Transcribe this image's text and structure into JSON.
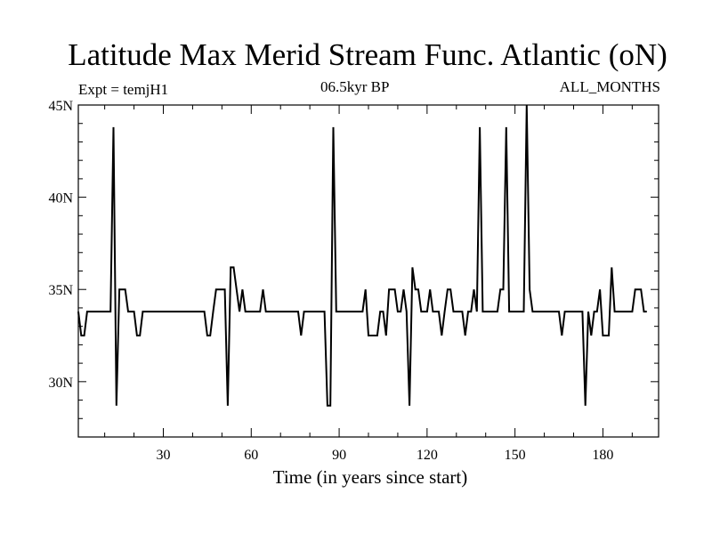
{
  "chart_data": {
    "type": "line",
    "title": "Latitude Max Merid Stream Func. Atlantic (oN)",
    "subtitle_left": "Expt = temjH1",
    "subtitle_center": "06.5kyr BP",
    "subtitle_right": "ALL_MONTHS",
    "xlabel": "Time (in years since start)",
    "ylabel": "",
    "xlim": [
      1,
      199
    ],
    "ylim": [
      27,
      45
    ],
    "x_ticks": [
      30,
      60,
      90,
      120,
      150,
      180
    ],
    "x_tick_labels": [
      "30",
      "60",
      "90",
      "120",
      "150",
      "180"
    ],
    "y_ticks": [
      30,
      35,
      40,
      45
    ],
    "y_tick_labels": [
      "30N",
      "35N",
      "40N",
      "45N"
    ],
    "grid": false,
    "series": [
      {
        "values": [
          [
            1,
            33.8
          ],
          [
            2,
            32.5
          ],
          [
            3,
            32.5
          ],
          [
            4,
            33.8
          ],
          [
            5,
            33.8
          ],
          [
            6,
            33.8
          ],
          [
            7,
            33.8
          ],
          [
            8,
            33.8
          ],
          [
            9,
            33.8
          ],
          [
            10,
            33.8
          ],
          [
            11,
            33.8
          ],
          [
            12,
            33.8
          ],
          [
            13,
            43.8
          ],
          [
            14,
            28.7
          ],
          [
            15,
            35.0
          ],
          [
            16,
            35.0
          ],
          [
            17,
            35.0
          ],
          [
            18,
            33.8
          ],
          [
            19,
            33.8
          ],
          [
            20,
            33.8
          ],
          [
            21,
            32.5
          ],
          [
            22,
            32.5
          ],
          [
            23,
            33.8
          ],
          [
            24,
            33.8
          ],
          [
            30,
            33.8
          ],
          [
            36,
            33.8
          ],
          [
            40,
            33.8
          ],
          [
            44,
            33.8
          ],
          [
            45,
            32.5
          ],
          [
            46,
            32.5
          ],
          [
            47,
            33.8
          ],
          [
            48,
            35.0
          ],
          [
            49,
            35.0
          ],
          [
            50,
            35.0
          ],
          [
            51,
            35.0
          ],
          [
            52,
            28.7
          ],
          [
            53,
            36.2
          ],
          [
            54,
            36.2
          ],
          [
            55,
            35.0
          ],
          [
            56,
            33.8
          ],
          [
            57,
            35.0
          ],
          [
            58,
            33.8
          ],
          [
            59,
            33.8
          ],
          [
            60,
            33.8
          ],
          [
            61,
            33.8
          ],
          [
            62,
            33.8
          ],
          [
            63,
            33.8
          ],
          [
            64,
            35.0
          ],
          [
            65,
            33.8
          ],
          [
            66,
            33.8
          ],
          [
            70,
            33.8
          ],
          [
            74,
            33.8
          ],
          [
            76,
            33.8
          ],
          [
            77,
            32.5
          ],
          [
            78,
            33.8
          ],
          [
            80,
            33.8
          ],
          [
            83,
            33.8
          ],
          [
            85,
            33.8
          ],
          [
            86,
            28.7
          ],
          [
            87,
            28.7
          ],
          [
            88,
            43.8
          ],
          [
            89,
            33.8
          ],
          [
            90,
            33.8
          ],
          [
            95,
            33.8
          ],
          [
            98,
            33.8
          ],
          [
            99,
            35.0
          ],
          [
            100,
            32.5
          ],
          [
            101,
            32.5
          ],
          [
            102,
            32.5
          ],
          [
            103,
            32.5
          ],
          [
            104,
            33.8
          ],
          [
            105,
            33.8
          ],
          [
            106,
            32.5
          ],
          [
            107,
            35.0
          ],
          [
            108,
            35.0
          ],
          [
            109,
            35.0
          ],
          [
            110,
            33.8
          ],
          [
            111,
            33.8
          ],
          [
            112,
            35.0
          ],
          [
            113,
            33.8
          ],
          [
            114,
            28.7
          ],
          [
            115,
            36.2
          ],
          [
            116,
            35.0
          ],
          [
            117,
            35.0
          ],
          [
            118,
            33.8
          ],
          [
            119,
            33.8
          ],
          [
            120,
            33.8
          ],
          [
            121,
            35.0
          ],
          [
            122,
            33.8
          ],
          [
            123,
            33.8
          ],
          [
            124,
            33.8
          ],
          [
            125,
            32.5
          ],
          [
            126,
            33.8
          ],
          [
            127,
            35.0
          ],
          [
            128,
            35.0
          ],
          [
            129,
            33.8
          ],
          [
            130,
            33.8
          ],
          [
            131,
            33.8
          ],
          [
            132,
            33.8
          ],
          [
            133,
            32.5
          ],
          [
            134,
            33.8
          ],
          [
            135,
            33.8
          ],
          [
            136,
            35.0
          ],
          [
            137,
            33.8
          ],
          [
            138,
            43.8
          ],
          [
            139,
            33.8
          ],
          [
            140,
            33.8
          ],
          [
            141,
            33.8
          ],
          [
            142,
            33.8
          ],
          [
            143,
            33.8
          ],
          [
            144,
            33.8
          ],
          [
            145,
            35.0
          ],
          [
            146,
            35.0
          ],
          [
            147,
            43.8
          ],
          [
            148,
            33.8
          ],
          [
            149,
            33.8
          ],
          [
            150,
            33.8
          ],
          [
            151,
            33.8
          ],
          [
            152,
            33.8
          ],
          [
            153,
            33.8
          ],
          [
            154,
            45.0
          ],
          [
            155,
            35.0
          ],
          [
            156,
            33.8
          ],
          [
            160,
            33.8
          ],
          [
            163,
            33.8
          ],
          [
            165,
            33.8
          ],
          [
            166,
            32.5
          ],
          [
            167,
            33.8
          ],
          [
            168,
            33.8
          ],
          [
            170,
            33.8
          ],
          [
            173,
            33.8
          ],
          [
            174,
            28.7
          ],
          [
            175,
            33.8
          ],
          [
            176,
            32.5
          ],
          [
            177,
            33.8
          ],
          [
            178,
            33.8
          ],
          [
            179,
            35.0
          ],
          [
            180,
            32.5
          ],
          [
            181,
            32.5
          ],
          [
            182,
            32.5
          ],
          [
            183,
            36.2
          ],
          [
            184,
            33.8
          ],
          [
            185,
            33.8
          ],
          [
            188,
            33.8
          ],
          [
            190,
            33.8
          ],
          [
            191,
            35.0
          ],
          [
            192,
            35.0
          ],
          [
            193,
            35.0
          ],
          [
            194,
            33.8
          ],
          [
            195,
            33.8
          ]
        ]
      }
    ]
  }
}
